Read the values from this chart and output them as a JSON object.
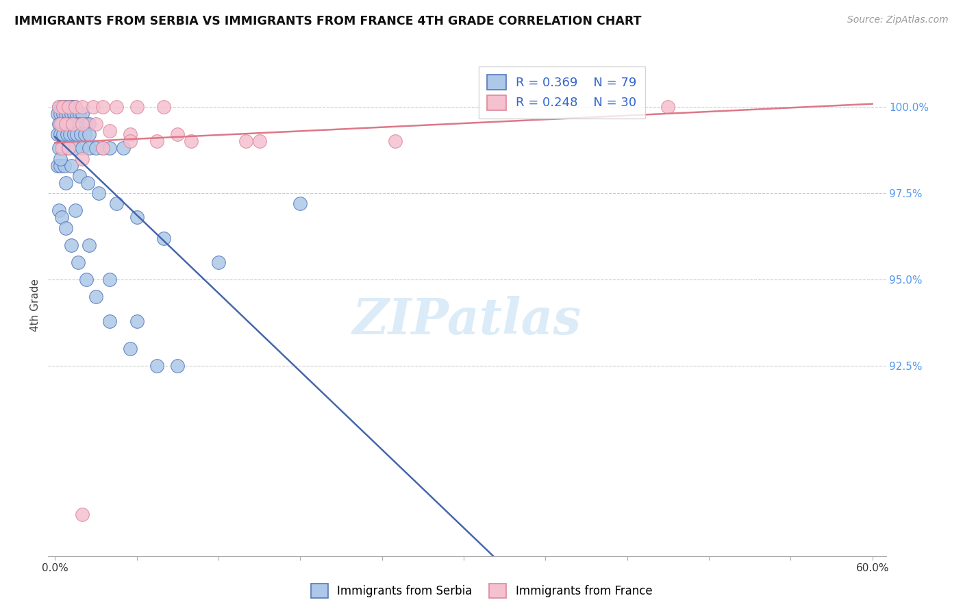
{
  "title": "IMMIGRANTS FROM SERBIA VS IMMIGRANTS FROM FRANCE 4TH GRADE CORRELATION CHART",
  "source": "Source: ZipAtlas.com",
  "xlabel_serbia": "Immigrants from Serbia",
  "xlabel_france": "Immigrants from France",
  "ylabel": "4th Grade",
  "xlim_min": -0.5,
  "xlim_max": 61.0,
  "ylim_min": 87.0,
  "ylim_max": 101.5,
  "ytick_vals": [
    92.5,
    95.0,
    97.5,
    100.0
  ],
  "ytick_labels": [
    "92.5%",
    "95.0%",
    "97.5%",
    "100.0%"
  ],
  "xtick_positions": [
    0,
    6,
    12,
    18,
    24,
    30,
    36,
    42,
    48,
    54,
    60
  ],
  "legend_R_serbia": "R = 0.369",
  "legend_N_serbia": "N = 79",
  "legend_R_france": "R = 0.248",
  "legend_N_france": "N = 30",
  "color_serbia_face": "#adc8e8",
  "color_serbia_edge": "#5577bb",
  "color_france_face": "#f5c0d0",
  "color_france_edge": "#dd8899",
  "color_serbia_line": "#4466aa",
  "color_france_line": "#dd7788",
  "serbia_x": [
    0.3,
    0.5,
    0.7,
    0.9,
    1.0,
    1.1,
    1.2,
    1.3,
    1.4,
    1.5,
    0.2,
    0.4,
    0.6,
    0.8,
    1.0,
    1.2,
    1.4,
    1.6,
    1.8,
    2.0,
    0.3,
    0.5,
    0.8,
    1.0,
    1.3,
    1.5,
    1.8,
    2.0,
    2.3,
    2.5,
    0.2,
    0.4,
    0.6,
    0.9,
    1.1,
    1.4,
    1.6,
    1.9,
    2.2,
    2.5,
    0.3,
    0.6,
    1.0,
    1.5,
    2.0,
    2.5,
    3.0,
    3.5,
    4.0,
    5.0,
    0.2,
    0.4,
    0.7,
    1.2,
    1.8,
    2.4,
    3.2,
    4.5,
    6.0,
    8.0,
    0.3,
    0.5,
    0.8,
    1.2,
    1.7,
    2.3,
    3.0,
    4.0,
    5.5,
    7.5,
    0.4,
    0.8,
    1.5,
    2.5,
    4.0,
    6.0,
    9.0,
    12.0,
    18.0
  ],
  "serbia_y": [
    100.0,
    100.0,
    100.0,
    100.0,
    100.0,
    100.0,
    100.0,
    100.0,
    100.0,
    100.0,
    99.8,
    99.8,
    99.8,
    99.8,
    99.8,
    99.8,
    99.8,
    99.8,
    99.8,
    99.8,
    99.5,
    99.5,
    99.5,
    99.5,
    99.5,
    99.5,
    99.5,
    99.5,
    99.5,
    99.5,
    99.2,
    99.2,
    99.2,
    99.2,
    99.2,
    99.2,
    99.2,
    99.2,
    99.2,
    99.2,
    98.8,
    98.8,
    98.8,
    98.8,
    98.8,
    98.8,
    98.8,
    98.8,
    98.8,
    98.8,
    98.3,
    98.3,
    98.3,
    98.3,
    98.0,
    97.8,
    97.5,
    97.2,
    96.8,
    96.2,
    97.0,
    96.8,
    96.5,
    96.0,
    95.5,
    95.0,
    94.5,
    93.8,
    93.0,
    92.5,
    98.5,
    97.8,
    97.0,
    96.0,
    95.0,
    93.8,
    92.5,
    95.5,
    97.2
  ],
  "france_x": [
    0.3,
    0.6,
    1.0,
    1.5,
    2.0,
    2.8,
    3.5,
    4.5,
    6.0,
    8.0,
    0.4,
    0.8,
    1.3,
    2.0,
    3.0,
    4.0,
    5.5,
    7.5,
    10.0,
    14.0,
    0.5,
    1.0,
    2.0,
    3.5,
    5.5,
    9.0,
    15.0,
    25.0,
    45.0,
    2.0
  ],
  "france_y": [
    100.0,
    100.0,
    100.0,
    100.0,
    100.0,
    100.0,
    100.0,
    100.0,
    100.0,
    100.0,
    99.5,
    99.5,
    99.5,
    99.5,
    99.5,
    99.3,
    99.2,
    99.0,
    99.0,
    99.0,
    98.8,
    98.8,
    98.5,
    98.8,
    99.0,
    99.2,
    99.0,
    99.0,
    100.0,
    88.2
  ],
  "watermark": "ZIPatlas",
  "background_color": "#ffffff"
}
